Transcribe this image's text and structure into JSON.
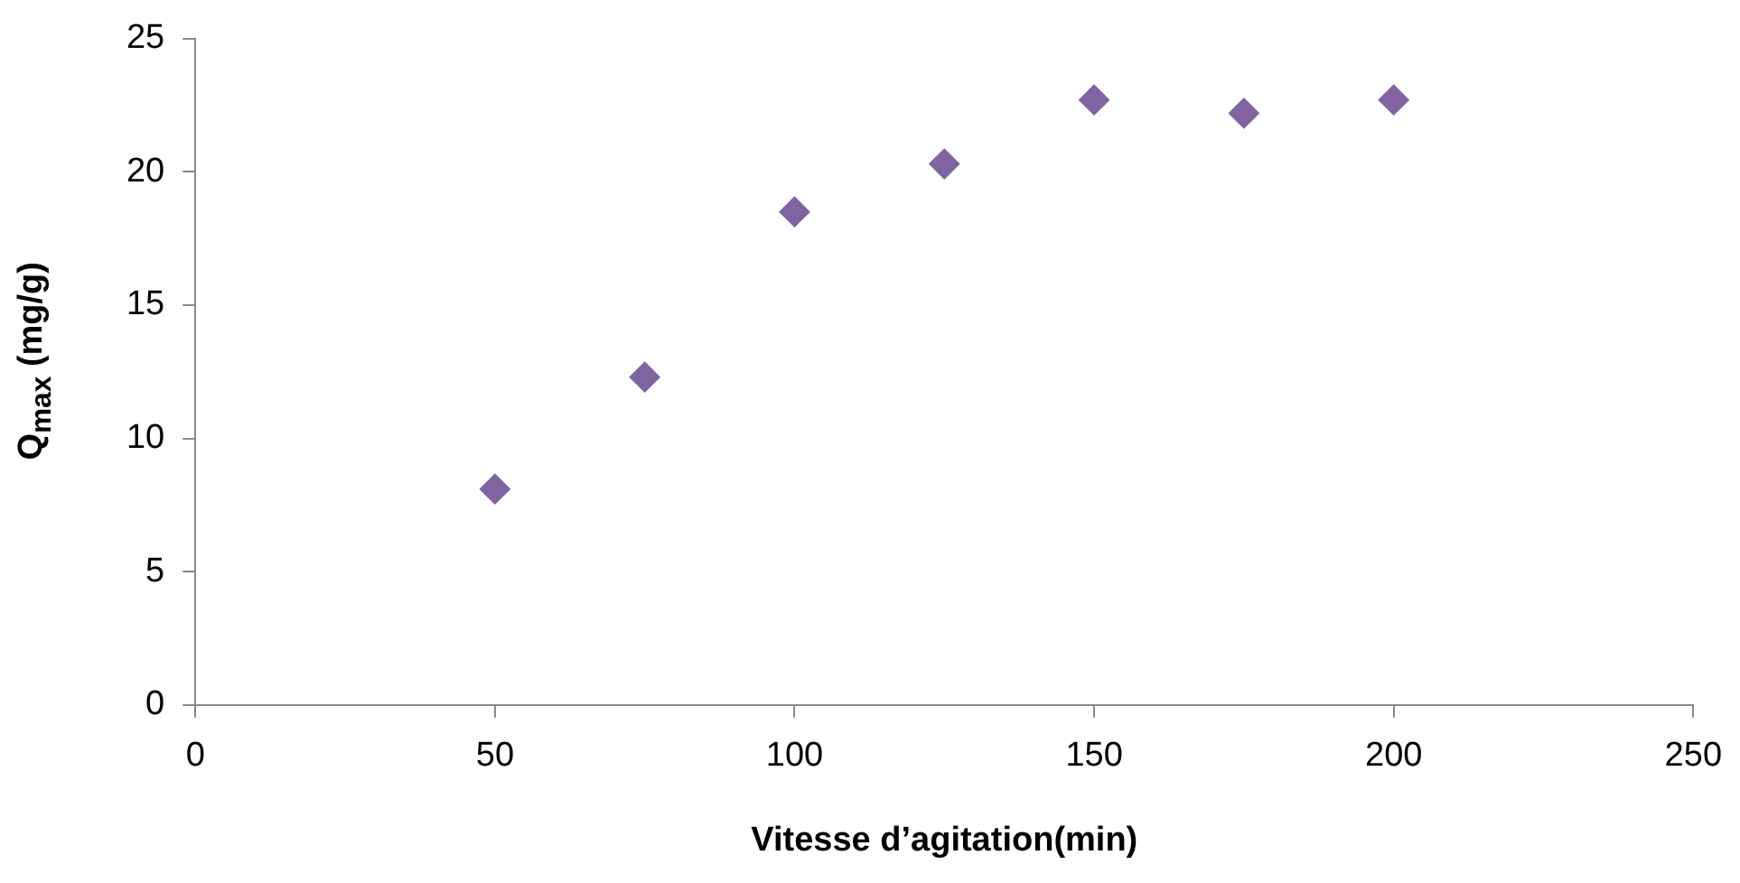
{
  "chart_data": {
    "type": "scatter",
    "xlabel": "Vitesse d’agitation(min)",
    "ylabel": "Q$_{max}$ (mg/g)",
    "x": [
      50,
      75,
      100,
      125,
      150,
      175,
      200
    ],
    "series": [
      {
        "color": "#8064a2",
        "values": [
          8.1,
          12.3,
          18.5,
          20.3,
          22.7,
          22.2,
          22.7
        ]
      }
    ],
    "xlim": [
      0,
      250
    ],
    "xticks": [
      0,
      50,
      100,
      150,
      200,
      250
    ],
    "ylim": [
      0,
      25
    ],
    "yticks": [
      0,
      5,
      10,
      15,
      20,
      25
    ],
    "grid": false,
    "legend": false,
    "marker": "diamond"
  }
}
